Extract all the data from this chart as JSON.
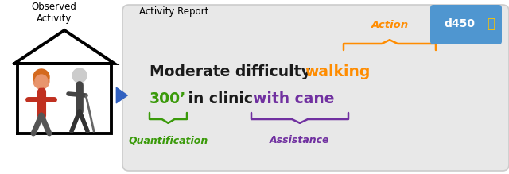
{
  "white_bg": "#ffffff",
  "box_bg": "#e8e8e8",
  "box_edge": "#cccccc",
  "title_activity_report": "Activity Report",
  "title_observed": "Observed\nActivity",
  "action_label": "Action",
  "action_color": "#ff8c00",
  "quantification_label": "Quantification",
  "quantification_color": "#3a9a0a",
  "assistance_label": "Assistance",
  "assistance_color": "#7030a0",
  "d450_bg": "#4f96d0",
  "d450_text": "d450",
  "arrow_color": "#3060c0",
  "black_text": "#1a1a1a",
  "line1_parts": [
    {
      "text": "Moderate difficulty ",
      "color": "#1a1a1a"
    },
    {
      "text": "walking",
      "color": "#ff8c00"
    }
  ],
  "line2_parts": [
    {
      "text": "300’",
      "color": "#3a9a0a"
    },
    {
      "text": " in clinic ",
      "color": "#1a1a1a"
    },
    {
      "text": "with cane",
      "color": "#7030a0"
    }
  ]
}
